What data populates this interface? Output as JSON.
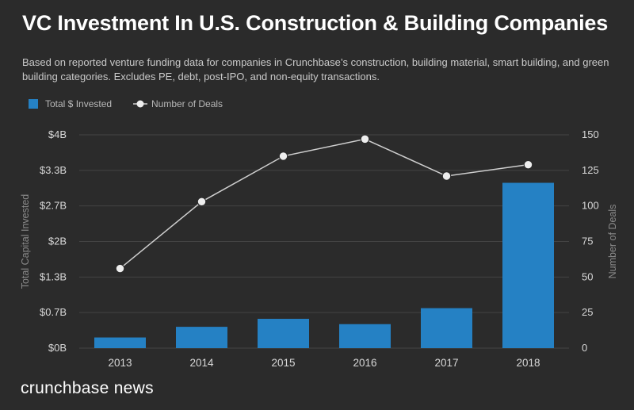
{
  "title": "VC Investment In U.S. Construction & Building Companies",
  "subtitle": "Based on reported venture funding data for companies in Crunchbase’s construction, building material, smart building, and green building categories. Excludes PE, debt, post-IPO, and non-equity transactions.",
  "brand": "crunchbase news",
  "colors": {
    "bar": "#2581c4",
    "line": "#cfcfcf",
    "marker": "#eeeeee",
    "grid": "#444444"
  },
  "chart_data": {
    "type": "bar+line",
    "categories": [
      "2013",
      "2014",
      "2015",
      "2016",
      "2017",
      "2018"
    ],
    "series": [
      {
        "name": "Total $ Invested",
        "type": "bar",
        "axis": "left",
        "values": [
          0.2,
          0.4,
          0.55,
          0.45,
          0.75,
          3.1
        ]
      },
      {
        "name": "Number of Deals",
        "type": "line",
        "axis": "right",
        "values": [
          56,
          103,
          135,
          147,
          121,
          129
        ]
      }
    ],
    "y_left": {
      "label": "Total Capital Invested",
      "range": [
        0,
        4
      ],
      "ticks": [
        0,
        0.667,
        1.333,
        2,
        2.667,
        3.333,
        4
      ],
      "tick_labels": [
        "$0B",
        "$0.7B",
        "$1.3B",
        "$2B",
        "$2.7B",
        "$3.3B",
        "$4B"
      ]
    },
    "y_right": {
      "label": "Number of Deals",
      "range": [
        0,
        150
      ],
      "ticks": [
        0,
        25,
        50,
        75,
        100,
        125,
        150
      ],
      "tick_labels": [
        "0",
        "25",
        "50",
        "75",
        "100",
        "125",
        "150"
      ]
    },
    "legend": {
      "placement": "top-left",
      "entries": [
        "Total $ Invested",
        "Number of Deals"
      ]
    },
    "grid": true
  }
}
